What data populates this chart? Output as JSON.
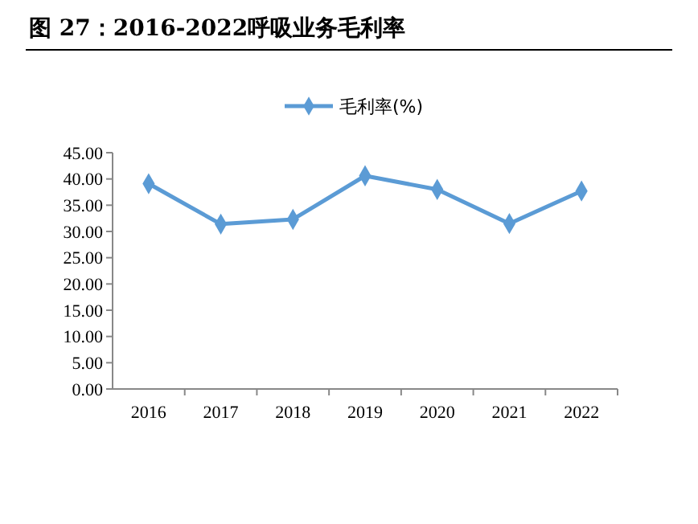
{
  "chart_data": {
    "type": "line",
    "title": "图 27：2016-2022呼吸业务毛利率",
    "categories": [
      "2016",
      "2017",
      "2018",
      "2019",
      "2020",
      "2021",
      "2022"
    ],
    "series": [
      {
        "name": "毛利率(%)",
        "color": "#5b9bd5",
        "values": [
          39.1,
          31.4,
          32.3,
          40.6,
          38.0,
          31.5,
          37.7
        ]
      }
    ],
    "ylim": [
      0,
      45
    ],
    "yticks": [
      {
        "value": 0,
        "label": "0.00"
      },
      {
        "value": 5,
        "label": "5.00"
      },
      {
        "value": 10,
        "label": "10.00"
      },
      {
        "value": 15,
        "label": "15.00"
      },
      {
        "value": 20,
        "label": "20.00"
      },
      {
        "value": 25,
        "label": "25.00"
      },
      {
        "value": 30,
        "label": "30.00"
      },
      {
        "value": 35,
        "label": "35.00"
      },
      {
        "value": 40,
        "label": "40.00"
      },
      {
        "value": 45,
        "label": "45.00"
      }
    ],
    "legend": "top",
    "marker": "diamond",
    "line_style": "solid",
    "grid": false
  }
}
